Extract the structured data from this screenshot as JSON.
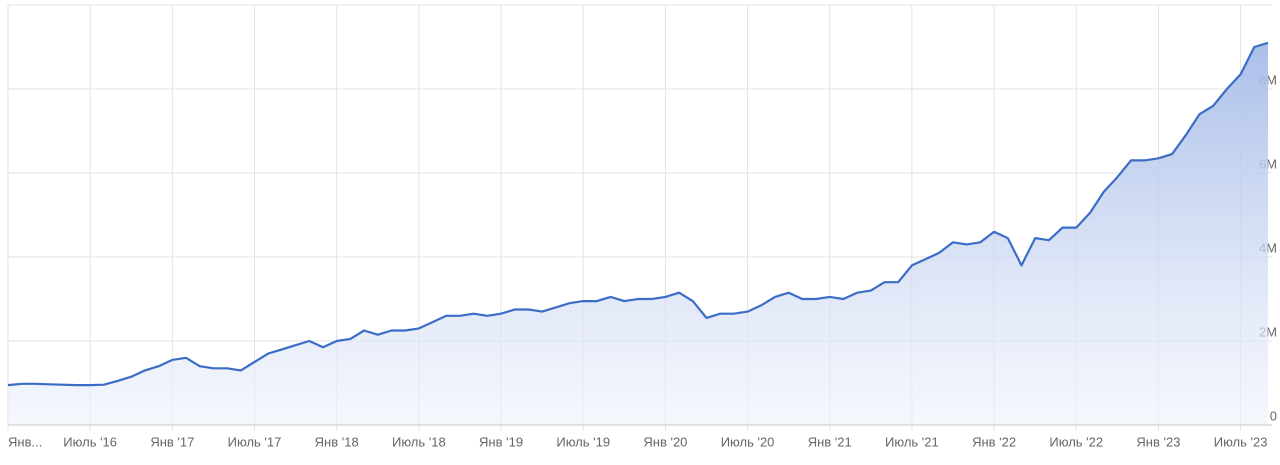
{
  "chart_data": {
    "type": "area",
    "x": [
      "2016-01",
      "2016-02",
      "2016-03",
      "2016-04",
      "2016-05",
      "2016-06",
      "2016-07",
      "2016-08",
      "2016-09",
      "2016-10",
      "2016-11",
      "2016-12",
      "2017-01",
      "2017-02",
      "2017-03",
      "2017-04",
      "2017-05",
      "2017-06",
      "2017-07",
      "2017-08",
      "2017-09",
      "2017-10",
      "2017-11",
      "2017-12",
      "2018-01",
      "2018-02",
      "2018-03",
      "2018-04",
      "2018-05",
      "2018-06",
      "2018-07",
      "2018-08",
      "2018-09",
      "2018-10",
      "2018-11",
      "2018-12",
      "2019-01",
      "2019-02",
      "2019-03",
      "2019-04",
      "2019-05",
      "2019-06",
      "2019-07",
      "2019-08",
      "2019-09",
      "2019-10",
      "2019-11",
      "2019-12",
      "2020-01",
      "2020-02",
      "2020-03",
      "2020-04",
      "2020-05",
      "2020-06",
      "2020-07",
      "2020-08",
      "2020-09",
      "2020-10",
      "2020-11",
      "2020-12",
      "2021-01",
      "2021-02",
      "2021-03",
      "2021-04",
      "2021-05",
      "2021-06",
      "2021-07",
      "2021-08",
      "2021-09",
      "2021-10",
      "2021-11",
      "2021-12",
      "2022-01",
      "2022-02",
      "2022-03",
      "2022-04",
      "2022-05",
      "2022-06",
      "2022-07",
      "2022-08",
      "2022-09",
      "2022-10",
      "2022-11",
      "2022-12",
      "2023-01",
      "2023-02",
      "2023-03",
      "2023-04",
      "2023-05",
      "2023-06",
      "2023-07",
      "2023-08",
      "2023-09"
    ],
    "values": [
      950000,
      980000,
      980000,
      970000,
      960000,
      950000,
      950000,
      960000,
      1050000,
      1150000,
      1300000,
      1400000,
      1550000,
      1600000,
      1400000,
      1350000,
      1350000,
      1300000,
      1500000,
      1700000,
      1800000,
      1900000,
      2000000,
      1850000,
      2000000,
      2050000,
      2250000,
      2150000,
      2250000,
      2250000,
      2300000,
      2450000,
      2600000,
      2600000,
      2650000,
      2600000,
      2650000,
      2750000,
      2750000,
      2700000,
      2800000,
      2900000,
      2950000,
      2950000,
      3050000,
      2950000,
      3000000,
      3000000,
      3050000,
      3150000,
      2950000,
      2550000,
      2650000,
      2650000,
      2700000,
      2850000,
      3050000,
      3150000,
      3000000,
      3000000,
      3050000,
      3000000,
      3150000,
      3200000,
      3400000,
      3400000,
      3800000,
      3950000,
      4100000,
      4350000,
      4300000,
      4350000,
      4600000,
      4450000,
      3800000,
      4450000,
      4400000,
      4700000,
      4700000,
      5050000,
      5550000,
      5900000,
      6300000,
      6300000,
      6350000,
      6450000,
      6900000,
      7400000,
      7600000,
      8000000,
      8350000,
      9000000,
      9100000
    ],
    "color": "#3b6dc7",
    "xlim": [
      "2016-01",
      "2023-09"
    ],
    "xticks": [
      {
        "value": "2016-01",
        "label": "Янв..."
      },
      {
        "value": "2016-07",
        "label": "Июль '16"
      },
      {
        "value": "2017-01",
        "label": "Янв '17"
      },
      {
        "value": "2017-07",
        "label": "Июль '17"
      },
      {
        "value": "2018-01",
        "label": "Янв '18"
      },
      {
        "value": "2018-07",
        "label": "Июль '18"
      },
      {
        "value": "2019-01",
        "label": "Янв '19"
      },
      {
        "value": "2019-07",
        "label": "Июль '19"
      },
      {
        "value": "2020-01",
        "label": "Янв '20"
      },
      {
        "value": "2020-07",
        "label": "Июль '20"
      },
      {
        "value": "2021-01",
        "label": "Янв '21"
      },
      {
        "value": "2021-07",
        "label": "Июль '21"
      },
      {
        "value": "2022-01",
        "label": "Янв '22"
      },
      {
        "value": "2022-07",
        "label": "Июль '22"
      },
      {
        "value": "2023-01",
        "label": "Янв '23"
      },
      {
        "value": "2023-07",
        "label": "Июль '23"
      }
    ],
    "ylim": [
      0,
      10000000
    ],
    "yticks": [
      0,
      {
        "value": 2000000,
        "label": "2M"
      },
      {
        "value": 4000000,
        "label": "4M"
      },
      {
        "value": 6000000,
        "label": "6M"
      },
      {
        "value": 8000000,
        "label": "8M"
      }
    ],
    "grid": true
  }
}
